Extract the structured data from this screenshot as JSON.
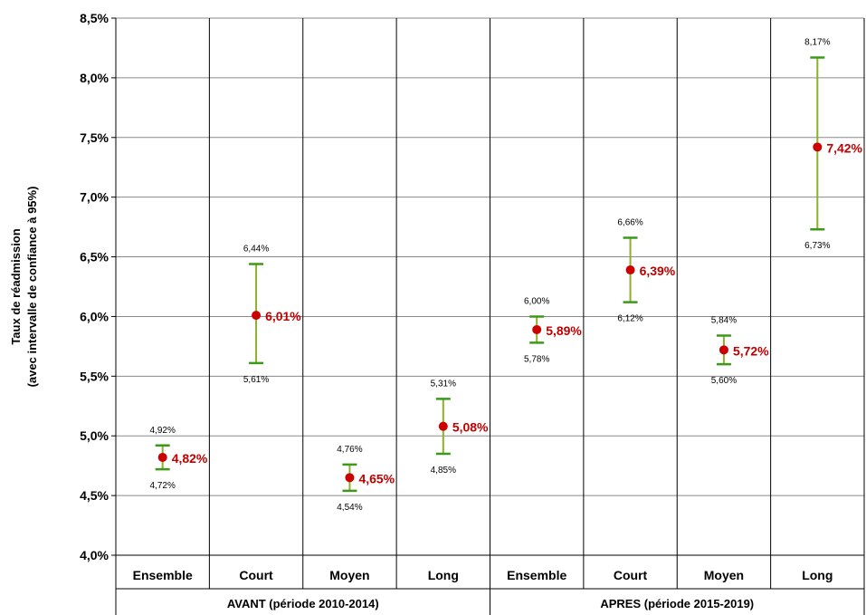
{
  "chart_data": {
    "type": "scatter",
    "ylabel_lines": [
      "Taux de réadmission",
      "(avec intervalle de confiance à 95%)"
    ],
    "yticks": [
      "4,0%",
      "4,5%",
      "5,0%",
      "5,5%",
      "6,0%",
      "6,5%",
      "7,0%",
      "7,5%",
      "8,0%",
      "8,5%"
    ],
    "ylim": [
      4.0,
      8.5
    ],
    "grid": true,
    "groups": [
      "AVANT (période 2010-2014)",
      "APRES (période 2015-2019)"
    ],
    "categories": [
      "Ensemble",
      "Court",
      "Moyen",
      "Long",
      "Ensemble",
      "Court",
      "Moyen",
      "Long"
    ],
    "points": [
      {
        "value": 4.82,
        "label": "4,82%",
        "lower": 4.72,
        "lower_label": "4,72%",
        "upper": 4.92,
        "upper_label": "4,92%"
      },
      {
        "value": 6.01,
        "label": "6,01%",
        "lower": 5.61,
        "lower_label": "5,61%",
        "upper": 6.44,
        "upper_label": "6,44%"
      },
      {
        "value": 4.65,
        "label": "4,65%",
        "lower": 4.54,
        "lower_label": "4,54%",
        "upper": 4.76,
        "upper_label": "4,76%"
      },
      {
        "value": 5.08,
        "label": "5,08%",
        "lower": 4.85,
        "lower_label": "4,85%",
        "upper": 5.31,
        "upper_label": "5,31%"
      },
      {
        "value": 5.89,
        "label": "5,89%",
        "lower": 5.78,
        "lower_label": "5,78%",
        "upper": 6.0,
        "upper_label": "6,00%"
      },
      {
        "value": 6.39,
        "label": "6,39%",
        "lower": 6.12,
        "lower_label": "6,12%",
        "upper": 6.66,
        "upper_label": "6,66%"
      },
      {
        "value": 5.72,
        "label": "5,72%",
        "lower": 5.6,
        "lower_label": "5,60%",
        "upper": 5.84,
        "upper_label": "5,84%"
      },
      {
        "value": 7.42,
        "label": "7,42%",
        "lower": 6.73,
        "lower_label": "6,73%",
        "upper": 8.17,
        "upper_label": "8,17%"
      }
    ],
    "colors": {
      "point": "#cc0000",
      "value_label": "#c00000",
      "error_bar": "#8db02a",
      "error_cap": "#3c9a1a"
    }
  }
}
